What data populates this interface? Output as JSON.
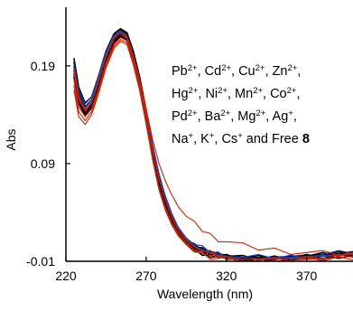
{
  "chart_data": {
    "type": "line",
    "title": "",
    "xlabel": "Wavelength (nm)",
    "ylabel": "Abs",
    "xlim": [
      220,
      400
    ],
    "ylim": [
      -0.01,
      0.25
    ],
    "x_ticks": [
      220,
      270,
      320,
      370
    ],
    "x_tick_labels": [
      "220",
      "270",
      "320",
      "370"
    ],
    "y_ticks": [
      -0.01,
      0.09,
      0.19
    ],
    "y_tick_labels": [
      "-0.01",
      "0.09",
      "0.19"
    ],
    "grid": false,
    "annotation": {
      "lines": [
        [
          [
            "Pb",
            "2+"
          ],
          [
            ", Cd",
            "2+"
          ],
          [
            ", Cu",
            "2+"
          ],
          [
            ", Zn",
            "2+"
          ],
          [
            ",",
            ""
          ]
        ],
        [
          [
            "Hg",
            "2+"
          ],
          [
            ", Ni",
            "2+"
          ],
          [
            ", Mn",
            "2+"
          ],
          [
            ", Co",
            "2+"
          ],
          [
            ",",
            ""
          ]
        ],
        [
          [
            "Pd",
            "2+"
          ],
          [
            ", Ba",
            "2+"
          ],
          [
            ", Mg",
            "2+"
          ],
          [
            ", Ag",
            "+"
          ],
          [
            ",",
            ""
          ]
        ],
        [
          [
            "Na",
            "+"
          ],
          [
            ", K",
            "+"
          ],
          [
            ", Cs",
            "+"
          ],
          [
            " and Free ",
            ""
          ]
        ]
      ],
      "bold_suffix": "8"
    },
    "x": [
      225,
      228,
      232,
      236,
      240,
      245,
      250,
      254,
      258,
      262,
      266,
      270,
      274,
      278,
      282,
      286,
      290,
      295,
      300,
      305,
      310,
      315,
      320,
      330,
      340,
      350,
      360,
      370,
      380,
      390,
      400
    ],
    "series": [
      {
        "color": "#000000",
        "values": [
          0.198,
          0.168,
          0.152,
          0.158,
          0.178,
          0.205,
          0.223,
          0.228,
          0.224,
          0.205,
          0.178,
          0.145,
          0.108,
          0.075,
          0.052,
          0.035,
          0.022,
          0.012,
          0.006,
          0.003,
          0.0,
          -0.002,
          -0.004,
          -0.006,
          -0.006,
          -0.006,
          -0.005,
          -0.004,
          -0.003,
          -0.002,
          0.0
        ]
      },
      {
        "color": "#000000",
        "values": [
          0.194,
          0.164,
          0.148,
          0.155,
          0.175,
          0.203,
          0.221,
          0.227,
          0.223,
          0.203,
          0.176,
          0.142,
          0.105,
          0.072,
          0.05,
          0.033,
          0.02,
          0.011,
          0.005,
          0.002,
          -0.001,
          -0.003,
          -0.005,
          -0.007,
          -0.007,
          -0.006,
          -0.006,
          -0.005,
          -0.004,
          -0.003,
          -0.001
        ]
      },
      {
        "color": "#000000",
        "values": [
          0.19,
          0.16,
          0.145,
          0.152,
          0.172,
          0.2,
          0.219,
          0.225,
          0.221,
          0.2,
          0.173,
          0.139,
          0.102,
          0.07,
          0.048,
          0.031,
          0.019,
          0.01,
          0.004,
          0.001,
          -0.002,
          -0.004,
          -0.005,
          -0.007,
          -0.007,
          -0.007,
          -0.006,
          -0.005,
          -0.004,
          -0.003,
          -0.002
        ]
      },
      {
        "color": "#000000",
        "values": [
          0.186,
          0.157,
          0.142,
          0.15,
          0.17,
          0.198,
          0.217,
          0.223,
          0.219,
          0.198,
          0.171,
          0.137,
          0.1,
          0.068,
          0.046,
          0.03,
          0.018,
          0.009,
          0.003,
          0.0,
          -0.002,
          -0.004,
          -0.006,
          -0.007,
          -0.008,
          -0.007,
          -0.007,
          -0.006,
          -0.005,
          -0.004,
          -0.002
        ]
      },
      {
        "color": "#000000",
        "values": [
          0.182,
          0.154,
          0.14,
          0.148,
          0.168,
          0.196,
          0.215,
          0.221,
          0.217,
          0.196,
          0.169,
          0.135,
          0.098,
          0.066,
          0.045,
          0.029,
          0.017,
          0.008,
          0.002,
          -0.001,
          -0.003,
          -0.005,
          -0.006,
          -0.008,
          -0.008,
          -0.008,
          -0.007,
          -0.006,
          -0.005,
          -0.004,
          -0.003
        ]
      },
      {
        "color": "#000000",
        "values": [
          0.179,
          0.152,
          0.139,
          0.147,
          0.167,
          0.195,
          0.214,
          0.22,
          0.216,
          0.195,
          0.168,
          0.134,
          0.097,
          0.066,
          0.044,
          0.028,
          0.017,
          0.008,
          0.002,
          -0.001,
          -0.003,
          -0.005,
          -0.006,
          -0.008,
          -0.008,
          -0.008,
          -0.007,
          -0.006,
          -0.006,
          -0.004,
          -0.003
        ]
      },
      {
        "color": "#1f3fbf",
        "values": [
          0.188,
          0.161,
          0.147,
          0.155,
          0.175,
          0.202,
          0.22,
          0.225,
          0.22,
          0.2,
          0.174,
          0.142,
          0.108,
          0.078,
          0.055,
          0.038,
          0.024,
          0.013,
          0.006,
          0.002,
          -0.001,
          -0.003,
          -0.005,
          -0.006,
          -0.007,
          -0.006,
          -0.006,
          -0.005,
          -0.004,
          -0.003,
          -0.002
        ]
      },
      {
        "color": "#1f3fbf",
        "values": [
          0.192,
          0.165,
          0.151,
          0.158,
          0.178,
          0.204,
          0.222,
          0.226,
          0.221,
          0.201,
          0.175,
          0.143,
          0.11,
          0.08,
          0.057,
          0.039,
          0.025,
          0.014,
          0.007,
          0.003,
          0.0,
          -0.002,
          -0.004,
          -0.006,
          -0.006,
          -0.006,
          -0.005,
          -0.004,
          -0.003,
          -0.002,
          -0.001
        ]
      },
      {
        "color": "#cc2200",
        "values": [
          0.176,
          0.148,
          0.138,
          0.146,
          0.165,
          0.193,
          0.212,
          0.219,
          0.216,
          0.195,
          0.168,
          0.134,
          0.097,
          0.066,
          0.045,
          0.03,
          0.019,
          0.01,
          0.004,
          0.0,
          -0.002,
          -0.004,
          -0.006,
          -0.009,
          -0.009,
          -0.009,
          -0.008,
          -0.007,
          -0.006,
          -0.005,
          -0.004
        ]
      },
      {
        "color": "#cc2200",
        "values": [
          0.17,
          0.143,
          0.134,
          0.143,
          0.162,
          0.19,
          0.21,
          0.217,
          0.214,
          0.193,
          0.166,
          0.132,
          0.095,
          0.064,
          0.043,
          0.028,
          0.017,
          0.008,
          0.002,
          -0.002,
          -0.004,
          -0.006,
          -0.007,
          -0.01,
          -0.01,
          -0.01,
          -0.009,
          -0.008,
          -0.007,
          -0.006,
          -0.005
        ]
      },
      {
        "color": "#cc2200",
        "values": [
          0.165,
          0.138,
          0.13,
          0.14,
          0.16,
          0.188,
          0.208,
          0.215,
          0.212,
          0.191,
          0.164,
          0.13,
          0.094,
          0.063,
          0.042,
          0.027,
          0.016,
          0.007,
          0.001,
          -0.003,
          -0.005,
          -0.007,
          -0.008,
          -0.011,
          -0.011,
          -0.01,
          -0.01,
          -0.009,
          -0.008,
          -0.007,
          -0.006
        ]
      },
      {
        "color": "#cc2200",
        "values": [
          0.183,
          0.156,
          0.144,
          0.152,
          0.172,
          0.199,
          0.218,
          0.224,
          0.22,
          0.2,
          0.175,
          0.146,
          0.115,
          0.09,
          0.072,
          0.058,
          0.046,
          0.036,
          0.028,
          0.022,
          0.017,
          0.013,
          0.01,
          0.006,
          0.003,
          0.002,
          0.0,
          -0.001,
          -0.002,
          -0.002,
          -0.002
        ]
      },
      {
        "color": "#cc2200",
        "values": [
          0.187,
          0.158,
          0.145,
          0.153,
          0.173,
          0.2,
          0.219,
          0.224,
          0.219,
          0.199,
          0.172,
          0.14,
          0.104,
          0.074,
          0.052,
          0.035,
          0.022,
          0.012,
          0.005,
          0.001,
          -0.002,
          -0.004,
          -0.006,
          -0.008,
          -0.008,
          -0.008,
          -0.007,
          -0.006,
          -0.005,
          -0.004,
          -0.003
        ]
      }
    ]
  }
}
